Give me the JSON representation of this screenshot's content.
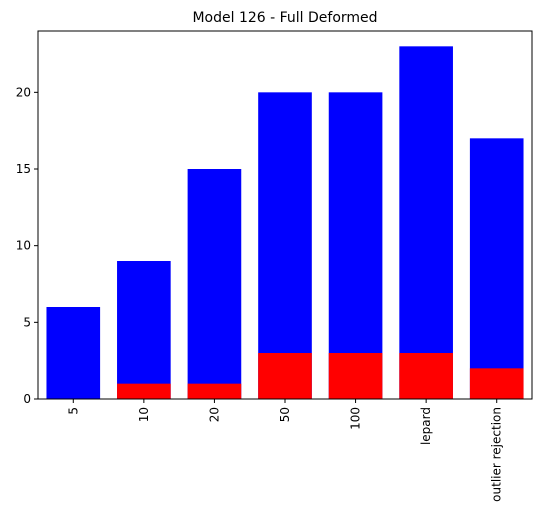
{
  "chart_data": {
    "type": "bar",
    "stacked": false,
    "title": "Model 126 - Full Deformed",
    "xlabel": "",
    "ylabel": "",
    "categories": [
      "5",
      "10",
      "20",
      "50",
      "100",
      "lepard",
      "outlier rejection"
    ],
    "series": [
      {
        "color": "#0000ff",
        "values": [
          6,
          9,
          15,
          20,
          20,
          23,
          17
        ]
      },
      {
        "color": "#ff0000",
        "values": [
          0,
          1,
          1,
          3,
          3,
          3,
          2
        ]
      }
    ],
    "ylim": [
      0,
      24
    ],
    "yticks": [
      0,
      5,
      10,
      15,
      20
    ],
    "grid": false,
    "legend": "none"
  }
}
